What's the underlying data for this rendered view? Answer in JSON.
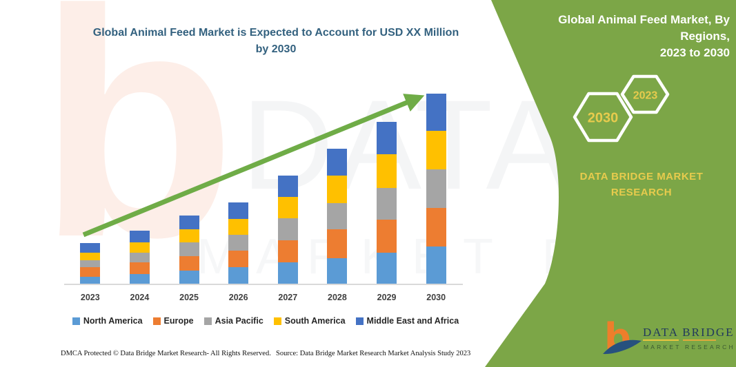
{
  "page": {
    "title_line1": "Global Animal Feed Market is Expected to Account for USD XX Million",
    "title_line2": "by 2030"
  },
  "watermarks": {
    "letter": "b",
    "text_upper": "DATA BRIDGE",
    "text_lower": "MARKET RESEARCH"
  },
  "chart_data": {
    "type": "bar",
    "stacked": true,
    "title": "Global Animal Feed Market is Expected to Account for USD XX Million by 2030",
    "categories": [
      "2023",
      "2024",
      "2025",
      "2026",
      "2027",
      "2028",
      "2029",
      "2030"
    ],
    "series": [
      {
        "name": "North America",
        "color": "#5B9BD5",
        "values": [
          10,
          14,
          19,
          24,
          31,
          37,
          45,
          54
        ]
      },
      {
        "name": "Europe",
        "color": "#ED7D31",
        "values": [
          14,
          17,
          21,
          24,
          32,
          42,
          48,
          56
        ]
      },
      {
        "name": "Asia Pacific",
        "color": "#A5A5A5",
        "values": [
          10,
          14,
          20,
          23,
          32,
          38,
          46,
          56
        ]
      },
      {
        "name": "South America",
        "color": "#FFC000",
        "values": [
          11,
          15,
          19,
          23,
          31,
          40,
          49,
          56
        ]
      },
      {
        "name": "Middle East and Africa",
        "color": "#4472C4",
        "values": [
          14,
          17,
          20,
          24,
          31,
          39,
          47,
          54
        ]
      }
    ],
    "value_note": "Chart shows no numeric y-axis (values are 'USD XX Million'); series values are relative heights estimated from pixels",
    "y_axis_visible": false,
    "gridlines": false,
    "legend_position": "bottom",
    "trend_arrow_color": "#6FAC47"
  },
  "footer": {
    "left": "DMCA Protected © Data Bridge Market Research-  All Rights Reserved.",
    "right": "Source: Data Bridge Market Research  Market Analysis Study 2023"
  },
  "side_panel": {
    "heading_line1": "Global Animal Feed Market, By Regions,",
    "heading_line2": "2023 to 2030",
    "hexagon_back_label": "2023",
    "hexagon_front_label": "2030",
    "brand_text_line1": "DATA BRIDGE MARKET",
    "brand_text_line2": "RESEARCH",
    "logo_letter": "b",
    "logo_title": "DATA BRIDGE",
    "logo_subtitle": "MARKET RESEARCH",
    "colors": {
      "panel_green": "#7CA647",
      "accent_yellow": "#E7CB4D",
      "logo_orange": "#EE7E2B",
      "logo_navy": "#27517E"
    }
  }
}
